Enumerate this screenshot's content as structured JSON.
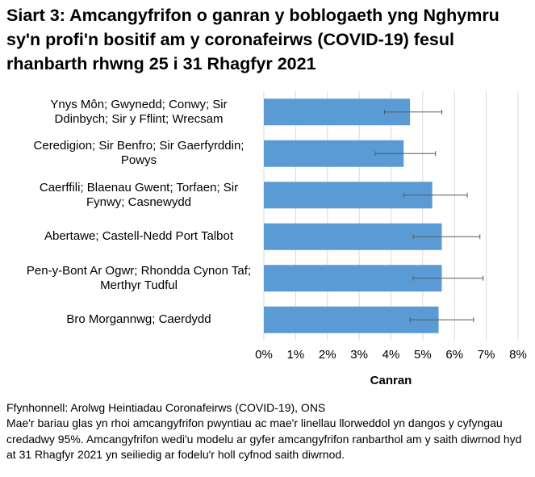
{
  "chart_data": {
    "type": "bar",
    "orientation": "horizontal",
    "title": "Siart 3: Amcangyfrifon o ganran y boblogaeth yng Nghymru sy'n profi'n bositif am y coronafeirws (COVID-19) fesul rhanbarth rhwng 25 i 31 Rhagfyr 2021",
    "categories": [
      "Ynys Môn; Gwynedd; Conwy; Sir Ddinbych; Sir y Fflint; Wrecsam",
      "Ceredigion; Sir Benfro; Sir Gaerfyrddin; Powys",
      "Caerffili; Blaenau Gwent; Torfaen; Sir Fynwy; Casnewydd",
      "Abertawe; Castell-Nedd Port Talbot",
      "Pen-y-Bont Ar Ogwr; Rhondda Cynon Taf; Merthyr Tudful",
      "Bro Morgannwg; Caerdydd"
    ],
    "values": [
      4.6,
      4.4,
      5.3,
      5.6,
      5.6,
      5.5
    ],
    "error_low": [
      3.8,
      3.5,
      4.4,
      4.7,
      4.7,
      4.6
    ],
    "error_high": [
      5.6,
      5.4,
      6.4,
      6.8,
      6.9,
      6.6
    ],
    "color": "#5b9bd5",
    "xlim": [
      0,
      8
    ],
    "xticks": [
      {
        "value": 0,
        "label": "0%"
      },
      {
        "value": 1,
        "label": "1%"
      },
      {
        "value": 2,
        "label": "2%"
      },
      {
        "value": 3,
        "label": "3%"
      },
      {
        "value": 4,
        "label": "4%"
      },
      {
        "value": 5,
        "label": "5%"
      },
      {
        "value": 6,
        "label": "6%"
      },
      {
        "value": 7,
        "label": "7%"
      },
      {
        "value": 8,
        "label": "8%"
      }
    ],
    "xlabel": "Canran",
    "grid": true,
    "source": "Ffynhonnell: Arolwg Heintiadau Coronafeirws (COVID-19), ONS",
    "note": "Mae'r bariau glas yn rhoi amcangyfrifon pwyntiau ac mae'r linellau llorweddol yn dangos y cyfyngau credadwy 95%. Amcangyfrifon wedi'u modelu ar gyfer amcangyfrifon ranbarthol am y saith diwrnod hyd at 31 Rhagfyr 2021 yn seiliedig ar fodelu'r holl cyfnod saith diwrnod."
  }
}
